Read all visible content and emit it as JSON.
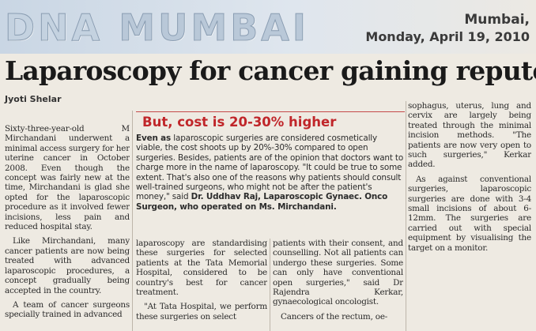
{
  "masthead": {
    "logo_dna": "DNA",
    "logo_city": "MUMBAI",
    "city": "Mumbai,",
    "date": "Monday, April 19, 2010"
  },
  "article": {
    "headline": "Laparoscopy for cancer gaining repute",
    "byline": "Jyoti Shelar",
    "subhead": "But, cost is 20-30% higher",
    "pullquote": {
      "lead": "Even as",
      "body": " laparoscopic surgeries are considered cosmetically viable, the cost shoots up by 20%-30% compared to open surgeries. Besides, patients are of the opinion that doctors want to charge more in the name of laparoscopy. \"It could be true to some extent. That's also one of the reasons why patients should consult well-trained surgeons, who might not be after the patient's money,\" said ",
      "credit": "Dr. Uddhav Raj, Laparoscopic Gynaec. Onco Surgeon, who operated on Ms. Mirchandani."
    },
    "col1": [
      "Sixty-three-year-old M Mirchandani underwent a minimal access surgery for her uterine cancer in October 2008. Even though the concept was fairly new at the time, Mirchandani is glad she opted for the laparoscopic procedure as it involved fewer incisions, less pain and reduced hospital stay.",
      "Like Mirchandani, many cancer patients are now being treated with advanced laparoscopic procedures, a concept gradually being accepted in the country.",
      "A team of cancer surgeons specially trained in advanced"
    ],
    "col2": [
      "laparoscopy are standardising these surgeries for selected patients at the Tata Memorial Hospital, considered to be country's best for cancer treatment.",
      "\"At Tata Hospital, we perform these surgeries on select"
    ],
    "col3": [
      "patients with their consent, and counselling. Not all patients can undergo these surgeries. Some can only have conventional open surgeries,\" said Dr Rajendra Kerkar, gynaecological oncologist.",
      "Cancers of the rectum, oe-"
    ],
    "col4": [
      "sophagus, uterus, lung and cervix are largely being treated through the minimal incision methods. \"The patients are now very open to such surgeries,\" Kerkar added.",
      "As against conventional surgeries, laparoscopic surgeries are done with 3-4 small incisions of about 6-12mm. The surgeries are carried out with special equipment by visualising the target on a monitor."
    ]
  }
}
